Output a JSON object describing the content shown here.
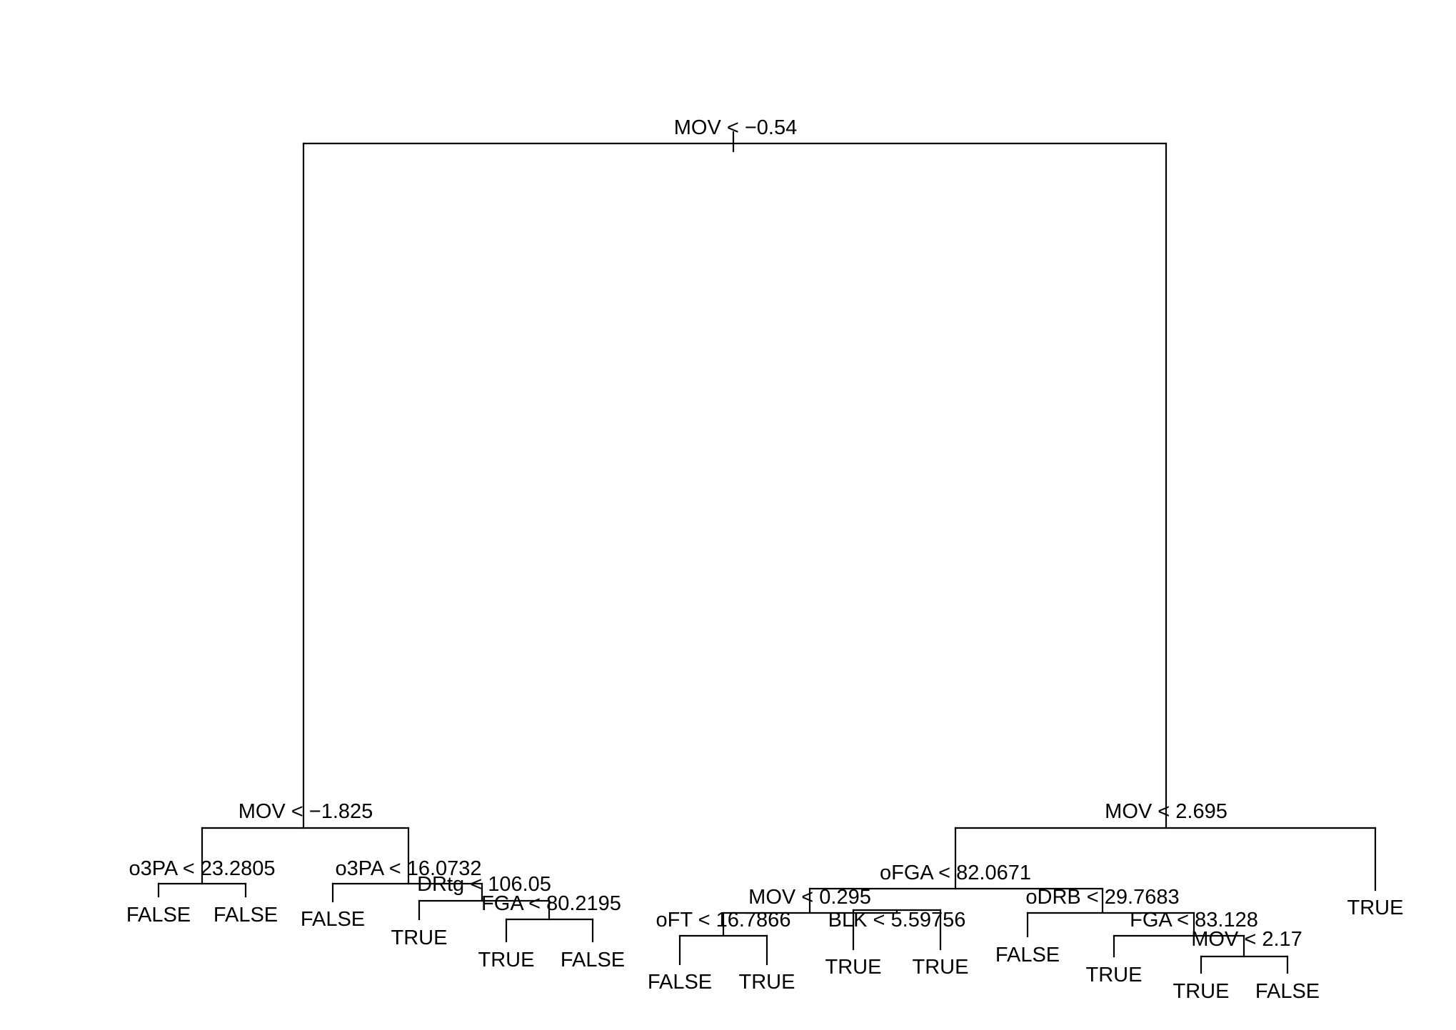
{
  "diagram": {
    "type": "decision-tree",
    "nodes": [
      {
        "id": "n1",
        "label": "MOV < −0.54"
      },
      {
        "id": "n2",
        "label": "MOV < −1.825"
      },
      {
        "id": "n3",
        "label": "MOV < 2.695"
      },
      {
        "id": "n4",
        "label": "o3PA < 23.2805"
      },
      {
        "id": "n5",
        "label": "o3PA < 16.0732"
      },
      {
        "id": "n6",
        "label": "DRtg < 106.05"
      },
      {
        "id": "n7",
        "label": "FGA < 80.2195"
      },
      {
        "id": "n8",
        "label": "oFGA < 82.0671"
      },
      {
        "id": "n9",
        "label": "MOV < 0.295"
      },
      {
        "id": "n10",
        "label": "oFT < 16.7866"
      },
      {
        "id": "n11",
        "label": "BLK < 5.59756"
      },
      {
        "id": "n12",
        "label": "oDRB < 29.7683"
      },
      {
        "id": "n13",
        "label": "FGA < 83.128"
      },
      {
        "id": "n14",
        "label": "MOV < 2.17"
      }
    ],
    "leaves": [
      {
        "id": "l1",
        "label": "FALSE"
      },
      {
        "id": "l2",
        "label": "FALSE"
      },
      {
        "id": "l3",
        "label": "FALSE"
      },
      {
        "id": "l4",
        "label": "TRUE"
      },
      {
        "id": "l5",
        "label": "TRUE"
      },
      {
        "id": "l6",
        "label": "FALSE"
      },
      {
        "id": "l7",
        "label": "FALSE"
      },
      {
        "id": "l8",
        "label": "TRUE"
      },
      {
        "id": "l9",
        "label": "TRUE"
      },
      {
        "id": "l10",
        "label": "TRUE"
      },
      {
        "id": "l11",
        "label": "FALSE"
      },
      {
        "id": "l12",
        "label": "TRUE"
      },
      {
        "id": "l13",
        "label": "TRUE"
      },
      {
        "id": "l14",
        "label": "FALSE"
      },
      {
        "id": "l15",
        "label": "TRUE"
      }
    ],
    "edges": [
      [
        "n1",
        "n2"
      ],
      [
        "n1",
        "n3"
      ],
      [
        "n2",
        "n4"
      ],
      [
        "n2",
        "n5"
      ],
      [
        "n4",
        "l1"
      ],
      [
        "n4",
        "l2"
      ],
      [
        "n5",
        "l3"
      ],
      [
        "n5",
        "n6"
      ],
      [
        "n6",
        "l4"
      ],
      [
        "n6",
        "n7"
      ],
      [
        "n7",
        "l5"
      ],
      [
        "n7",
        "l6"
      ],
      [
        "n3",
        "n8"
      ],
      [
        "n3",
        "l15"
      ],
      [
        "n8",
        "n9"
      ],
      [
        "n8",
        "n12"
      ],
      [
        "n9",
        "n10"
      ],
      [
        "n9",
        "n11"
      ],
      [
        "n10",
        "l7"
      ],
      [
        "n10",
        "l8"
      ],
      [
        "n11",
        "l9"
      ],
      [
        "n11",
        "l10"
      ],
      [
        "n12",
        "l11"
      ],
      [
        "n12",
        "n13"
      ],
      [
        "n13",
        "l12"
      ],
      [
        "n13",
        "n14"
      ],
      [
        "n14",
        "l13"
      ],
      [
        "n14",
        "l14"
      ]
    ]
  }
}
